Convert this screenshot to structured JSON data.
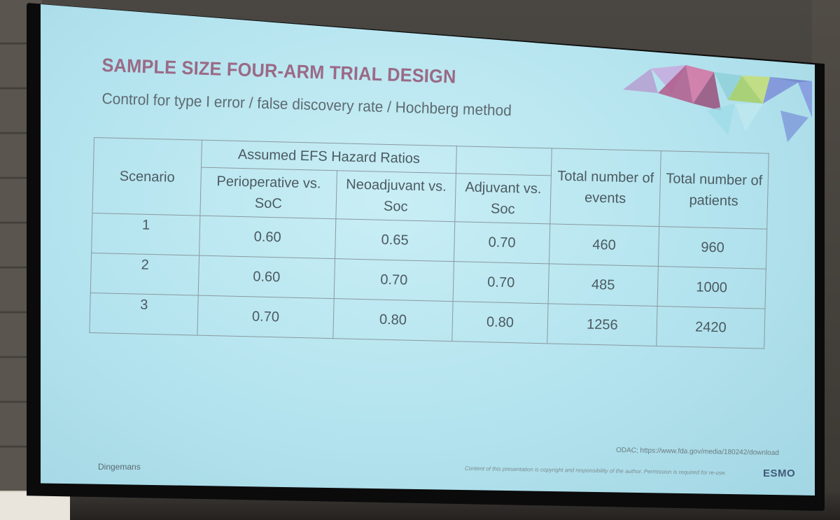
{
  "slide": {
    "title": "SAMPLE SIZE FOUR-ARM TRIAL DESIGN",
    "subtitle": "Control for type I error / false discovery rate / Hochberg method",
    "accent_title_color": "#9a6a86",
    "background_color": "#b3e3ee"
  },
  "table": {
    "scenario_header": "Scenario",
    "group_header": "Assumed EFS Hazard Ratios",
    "sub_headers": [
      "Perioperative vs. SoC",
      "Neoadjuvant vs. Soc",
      "Adjuvant vs. Soc"
    ],
    "total_events_header": "Total number of events",
    "total_patients_header": "Total number of patients",
    "rows": [
      {
        "scenario": "1",
        "peri": "0.60",
        "neo": "0.65",
        "adj": "0.70",
        "events": "460",
        "patients": "960"
      },
      {
        "scenario": "2",
        "peri": "0.60",
        "neo": "0.70",
        "adj": "0.70",
        "events": "485",
        "patients": "1000"
      },
      {
        "scenario": "3",
        "peri": "0.70",
        "neo": "0.80",
        "adj": "0.80",
        "events": "1256",
        "patients": "2420"
      }
    ]
  },
  "footer": {
    "presenter": "Dingemans",
    "reference": "ODAC; https://www.fda.gov/media/180242/download",
    "copyright": "Content of this presentation is copyright and responsibility of the author. Permission is required for re-use.",
    "logo": "ESMO"
  }
}
